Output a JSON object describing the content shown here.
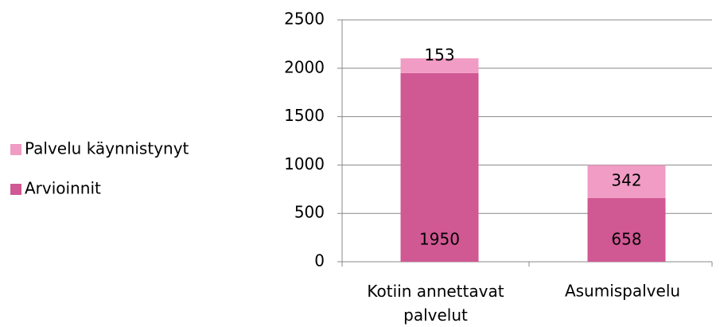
{
  "chart_data": {
    "type": "stacked-bar",
    "categories": [
      "Kotiin annettavat palvelut",
      "Asumispalvelu"
    ],
    "series": [
      {
        "name": "Arvioinnit",
        "color": "#d05893",
        "values": [
          1950,
          658
        ]
      },
      {
        "name": "Palvelu käynnistynyt",
        "color": "#f09cc4",
        "values": [
          153,
          342
        ]
      }
    ],
    "ylim": [
      0,
      2500
    ],
    "yticks": [
      0,
      500,
      1000,
      1500,
      2000,
      2500
    ],
    "grid": true,
    "legend": "left"
  }
}
